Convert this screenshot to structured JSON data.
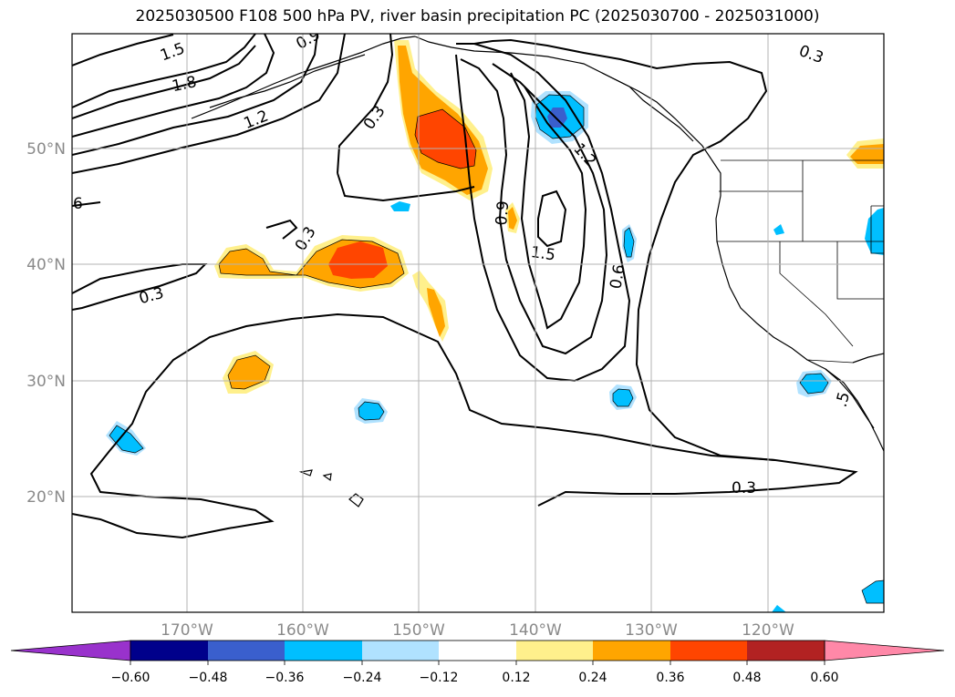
{
  "title": "2025030500 F108 500 hPa PV, river basin precipitation PC (2025030700 - 2025031000)",
  "map": {
    "lat_labels": [
      "50°N",
      "40°N",
      "30°N",
      "20°N"
    ],
    "lon_labels": [
      "170°W",
      "160°W",
      "150°W",
      "140°W",
      "130°W",
      "120°W"
    ],
    "contour_labels": [
      "1.5",
      "1.8",
      "1.2",
      "6",
      "0.9",
      "0.3",
      "0.3",
      "0.3",
      "0.9",
      "1.2",
      "1.5",
      "0.6",
      "0.3",
      "0.3",
      ".5"
    ],
    "contour_levels": [
      0.3,
      0.6,
      0.9,
      1.2,
      1.5,
      1.8
    ]
  },
  "colorbar": {
    "tick_labels": [
      "−0.60",
      "−0.48",
      "−0.36",
      "−0.24",
      "−0.12",
      "0.12",
      "0.24",
      "0.36",
      "0.48",
      "0.60"
    ],
    "colors": [
      "#9932cc",
      "#00008b",
      "#3a5fcd",
      "#00bfff",
      "#b0e2ff",
      "#ffffff",
      "#fff08c",
      "#ffa500",
      "#ff4500",
      "#b22222",
      "#ff88a8"
    ],
    "extend": "both"
  },
  "colors": {
    "pos_light": "#fff08c",
    "pos_mid": "#ffa500",
    "pos_high": "#ff4500",
    "neg_light": "#b0e2ff",
    "neg_mid": "#00bfff",
    "neg_high": "#3a5fcd"
  }
}
